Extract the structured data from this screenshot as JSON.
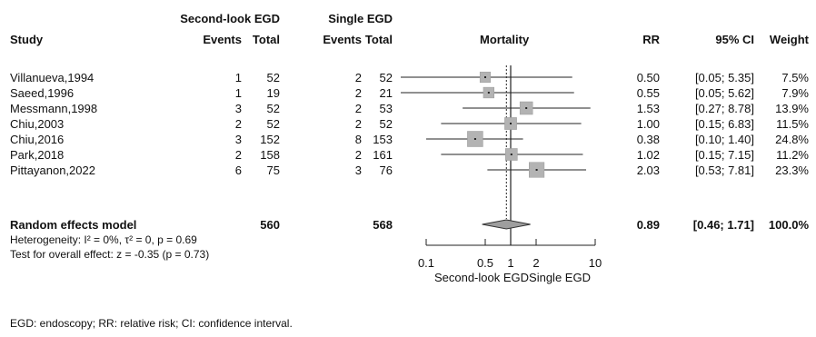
{
  "headers": {
    "group1": "Second-look EGD",
    "group2": "Single EGD",
    "study": "Study",
    "events1": "Events",
    "total1": "Total",
    "events2": "Events",
    "total2": "Total",
    "plot": "Mortality",
    "rr": "RR",
    "ci": "95% CI",
    "weight": "Weight"
  },
  "chart_data": {
    "type": "forest",
    "x_scale": "log",
    "xlim": [
      0.1,
      10
    ],
    "x_ticks": [
      0.1,
      0.5,
      1,
      2,
      10
    ],
    "x_tick_labels": [
      "0.1",
      "0.5",
      "1",
      "2",
      "10"
    ],
    "x_label_left": "Second-look EGD",
    "x_label_right": "Single EGD",
    "reference_line": 1,
    "pooled_line": 0.89,
    "studies": [
      {
        "name": "Villanueva,1994",
        "events1": "1",
        "total1": "52",
        "events2": "2",
        "total2": "52",
        "rr": 0.5,
        "lo": 0.05,
        "hi": 5.35,
        "rr_text": "0.50",
        "ci_text": "[0.05; 5.35]",
        "weight": 7.5,
        "weight_text": "7.5%"
      },
      {
        "name": "Saeed,1996",
        "events1": "1",
        "total1": "19",
        "events2": "2",
        "total2": "21",
        "rr": 0.55,
        "lo": 0.05,
        "hi": 5.62,
        "rr_text": "0.55",
        "ci_text": "[0.05; 5.62]",
        "weight": 7.9,
        "weight_text": "7.9%"
      },
      {
        "name": "Messmann,1998",
        "events1": "3",
        "total1": "52",
        "events2": "2",
        "total2": "53",
        "rr": 1.53,
        "lo": 0.27,
        "hi": 8.78,
        "rr_text": "1.53",
        "ci_text": "[0.27; 8.78]",
        "weight": 13.9,
        "weight_text": "13.9%"
      },
      {
        "name": "Chiu,2003",
        "events1": "2",
        "total1": "52",
        "events2": "2",
        "total2": "52",
        "rr": 1.0,
        "lo": 0.15,
        "hi": 6.83,
        "rr_text": "1.00",
        "ci_text": "[0.15; 6.83]",
        "weight": 11.5,
        "weight_text": "11.5%"
      },
      {
        "name": "Chiu,2016",
        "events1": "3",
        "total1": "152",
        "events2": "8",
        "total2": "153",
        "rr": 0.38,
        "lo": 0.1,
        "hi": 1.4,
        "rr_text": "0.38",
        "ci_text": "[0.10; 1.40]",
        "weight": 24.8,
        "weight_text": "24.8%"
      },
      {
        "name": "Park,2018",
        "events1": "2",
        "total1": "158",
        "events2": "2",
        "total2": "161",
        "rr": 1.02,
        "lo": 0.15,
        "hi": 7.15,
        "rr_text": "1.02",
        "ci_text": "[0.15; 7.15]",
        "weight": 11.2,
        "weight_text": "11.2%"
      },
      {
        "name": "Pittayanon,2022",
        "events1": "6",
        "total1": "75",
        "events2": "3",
        "total2": "76",
        "rr": 2.03,
        "lo": 0.53,
        "hi": 7.81,
        "rr_text": "2.03",
        "ci_text": "[0.53; 7.81]",
        "weight": 23.3,
        "weight_text": "23.3%"
      }
    ],
    "pooled": {
      "name": "Random effects model",
      "total1": "560",
      "total2": "568",
      "rr": 0.89,
      "lo": 0.46,
      "hi": 1.71,
      "rr_text": "0.89",
      "ci_text": "[0.46; 1.71]",
      "weight_text": "100.0%"
    },
    "heterogeneity_text": "Heterogeneity: I² = 0%, τ² = 0, p = 0.69",
    "overall_test_text": "Test for overall effect: z = -0.35 (p = 0.73)"
  },
  "footnote": "EGD: endoscopy; RR: relative risk; CI: confidence interval."
}
